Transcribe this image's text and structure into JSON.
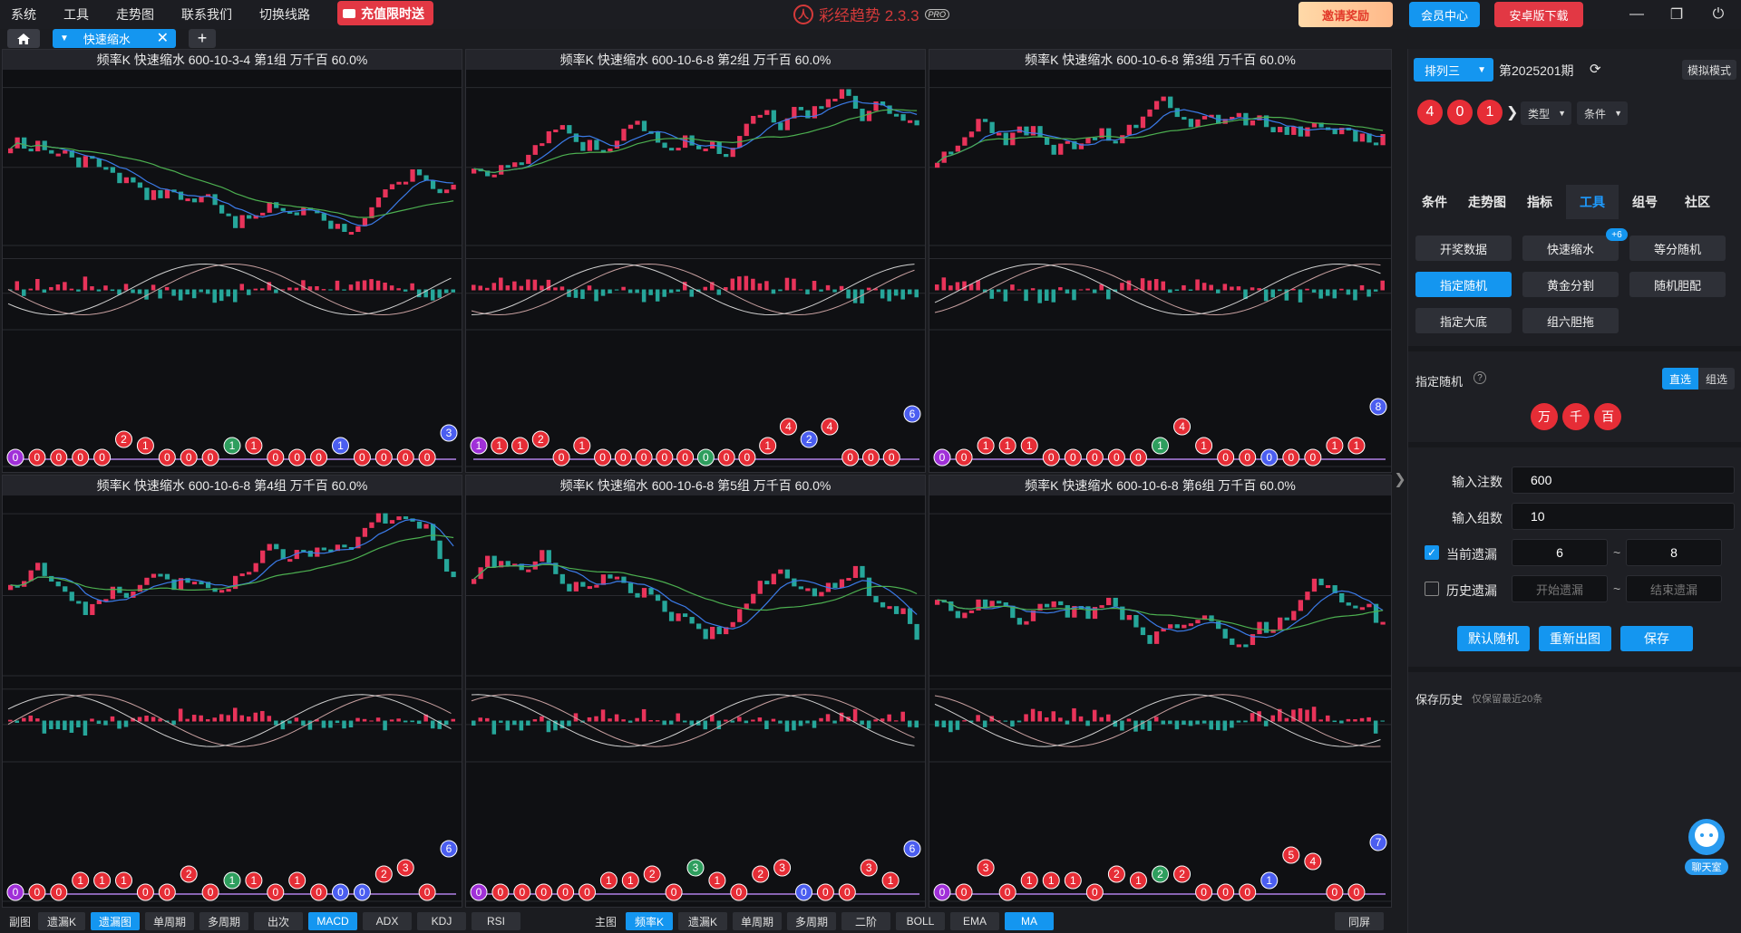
{
  "app": {
    "menu": [
      "系统",
      "工具",
      "走势图",
      "联系我们",
      "切换线路"
    ],
    "promo": "充值限时送",
    "brand": "彩经趋势 2.3.3",
    "brand_badge": "PRO",
    "invite": "邀请奖励",
    "member": "会员中心",
    "android": "安卓版下载"
  },
  "tab": {
    "label": "快速缩水"
  },
  "panels": [
    {
      "title": "频率K  快速缩水  600-10-3-4 第1组  万千百  60.0%",
      "balls": [
        "0",
        "0",
        "0",
        "0",
        "0",
        "2",
        "1",
        "0",
        "0",
        "0",
        "1",
        "1",
        "0",
        "0",
        "0",
        "1",
        "0",
        "0",
        "0",
        "0",
        "3"
      ],
      "ball_colors": [
        "p",
        "r",
        "r",
        "r",
        "r",
        "r",
        "r",
        "r",
        "r",
        "r",
        "g",
        "r",
        "r",
        "r",
        "r",
        "b",
        "r",
        "r",
        "r",
        "r",
        "b"
      ]
    },
    {
      "title": "频率K  快速缩水  600-10-6-8 第2组  万千百  60.0%",
      "balls": [
        "1",
        "1",
        "1",
        "2",
        "0",
        "1",
        "0",
        "0",
        "0",
        "0",
        "0",
        "0",
        "0",
        "0",
        "1",
        "4",
        "2",
        "4",
        "0",
        "0",
        "0",
        "6"
      ],
      "ball_colors": [
        "p",
        "r",
        "r",
        "r",
        "r",
        "r",
        "r",
        "r",
        "r",
        "r",
        "r",
        "g",
        "r",
        "r",
        "r",
        "r",
        "b",
        "r",
        "r",
        "r",
        "r",
        "b"
      ]
    },
    {
      "title": "频率K  快速缩水  600-10-6-8 第3组  万千百  60.0%",
      "balls": [
        "0",
        "0",
        "1",
        "1",
        "1",
        "0",
        "0",
        "0",
        "0",
        "0",
        "1",
        "4",
        "1",
        "0",
        "0",
        "0",
        "0",
        "0",
        "1",
        "1",
        "8"
      ],
      "ball_colors": [
        "p",
        "r",
        "r",
        "r",
        "r",
        "r",
        "r",
        "r",
        "r",
        "r",
        "g",
        "r",
        "r",
        "r",
        "r",
        "b",
        "r",
        "r",
        "r",
        "r",
        "b"
      ]
    },
    {
      "title": "频率K  快速缩水  600-10-6-8 第4组  万千百  60.0%",
      "balls": [
        "0",
        "0",
        "0",
        "1",
        "1",
        "1",
        "0",
        "0",
        "2",
        "0",
        "1",
        "1",
        "0",
        "1",
        "0",
        "0",
        "0",
        "2",
        "3",
        "0",
        "6"
      ],
      "ball_colors": [
        "p",
        "r",
        "r",
        "r",
        "r",
        "r",
        "r",
        "r",
        "r",
        "r",
        "g",
        "r",
        "r",
        "r",
        "r",
        "b",
        "b",
        "r",
        "r",
        "r",
        "b"
      ]
    },
    {
      "title": "频率K  快速缩水  600-10-6-8 第5组  万千百  60.0%",
      "balls": [
        "0",
        "0",
        "0",
        "0",
        "0",
        "0",
        "1",
        "1",
        "2",
        "0",
        "3",
        "1",
        "0",
        "2",
        "3",
        "0",
        "0",
        "0",
        "3",
        "1",
        "6"
      ],
      "ball_colors": [
        "p",
        "r",
        "r",
        "r",
        "r",
        "r",
        "r",
        "r",
        "r",
        "r",
        "g",
        "r",
        "r",
        "r",
        "r",
        "b",
        "r",
        "r",
        "r",
        "r",
        "b"
      ]
    },
    {
      "title": "频率K  快速缩水  600-10-6-8 第6组  万千百  60.0%",
      "balls": [
        "0",
        "0",
        "3",
        "0",
        "1",
        "1",
        "1",
        "0",
        "2",
        "1",
        "2",
        "2",
        "0",
        "0",
        "0",
        "1",
        "5",
        "4",
        "0",
        "0",
        "7"
      ],
      "ball_colors": [
        "p",
        "r",
        "r",
        "r",
        "r",
        "r",
        "r",
        "r",
        "r",
        "r",
        "g",
        "r",
        "r",
        "r",
        "r",
        "b",
        "r",
        "r",
        "r",
        "r",
        "b"
      ]
    }
  ],
  "bottom": {
    "sub_label": "副图",
    "sub": [
      "遗漏K",
      "遗漏图",
      "单周期",
      "多周期",
      "出次",
      "MACD",
      "ADX",
      "KDJ",
      "RSI"
    ],
    "main_label": "主图",
    "main": [
      "频率K",
      "遗漏K",
      "单周期",
      "多周期",
      "二阶",
      "BOLL",
      "EMA",
      "MA"
    ],
    "same": "同屏"
  },
  "right": {
    "lottery": "排列三",
    "period": "第2025201期",
    "sim_mode": "模拟模式",
    "draw": [
      "4",
      "0",
      "1"
    ],
    "type": "类型",
    "cond": "条件",
    "nav": [
      "条件",
      "走势图",
      "指标",
      "工具",
      "组号",
      "社区"
    ],
    "tools": [
      "开奖数据",
      "快速缩水",
      "等分随机",
      "指定随机",
      "黄金分割",
      "随机胆配",
      "指定大底",
      "组六胆拖"
    ],
    "badge": "+6",
    "section_title": "指定随机",
    "mode_direct": "直选",
    "mode_group": "组选",
    "positions": [
      "万",
      "千",
      "百"
    ],
    "bets_label": "输入注数",
    "bets_value": "600",
    "groups_label": "输入组数",
    "groups_value": "10",
    "cur_miss_label": "当前遗漏",
    "cur_miss_from": "6",
    "cur_miss_to": "8",
    "hist_miss_label": "历史遗漏",
    "hist_start_ph": "开始遗漏",
    "hist_end_ph": "结束遗漏",
    "tilde": "~",
    "btn_default": "默认随机",
    "btn_redraw": "重新出图",
    "btn_save": "保存",
    "history_title": "保存历史",
    "history_note": "仅保留最近20条",
    "chat": "聊天室"
  },
  "colors": {
    "accent": "#1496f0",
    "up": "#e8335a",
    "down": "#26a69a",
    "ball_red": "#e62d36",
    "ball_blue": "#4b5ef0",
    "ball_green": "#2e9e5e",
    "ball_purple": "#a030d8"
  }
}
